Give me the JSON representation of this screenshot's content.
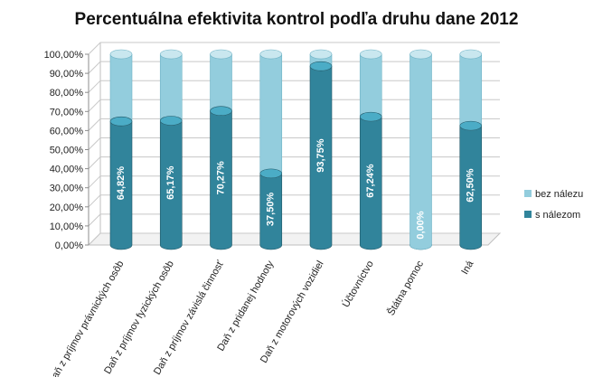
{
  "chart_data": {
    "type": "bar",
    "title": "Percentuálna efektivita kontrol podľa druhu dane 2012",
    "categories": [
      "Daň z príjmov právnických osôb",
      "Daň z príjmov fyzických osôb",
      "Daň z príjmov závislá činnosť",
      "Daň z pridanej hodnoty",
      "Daň z motorových vozidiel",
      "Účtovníctvo",
      "Štátna pomoc",
      "Iná"
    ],
    "series": [
      {
        "name": "s nálezom",
        "values": [
          64.82,
          65.17,
          70.27,
          37.5,
          93.75,
          67.24,
          0.0,
          62.5
        ],
        "color": "#31849b"
      },
      {
        "name": "bez nálezu",
        "values": [
          35.18,
          34.83,
          29.73,
          62.5,
          6.25,
          32.76,
          100.0,
          37.5
        ],
        "color": "#93cddd"
      }
    ],
    "data_labels": [
      "64,82%",
      "65,17%",
      "70,27%",
      "37,50%",
      "93,75%",
      "67,24%",
      "0,00%",
      "62,50%"
    ],
    "y_ticks": [
      "0,00%",
      "10,00%",
      "20,00%",
      "30,00%",
      "40,00%",
      "50,00%",
      "60,00%",
      "70,00%",
      "80,00%",
      "90,00%",
      "100,00%"
    ],
    "ylim": [
      0,
      100
    ],
    "stacked": true,
    "grid": true,
    "legend_position": "right",
    "legend": [
      {
        "name": "bez nálezu",
        "color": "#93cddd"
      },
      {
        "name": "s nálezom",
        "color": "#31849b"
      }
    ]
  }
}
